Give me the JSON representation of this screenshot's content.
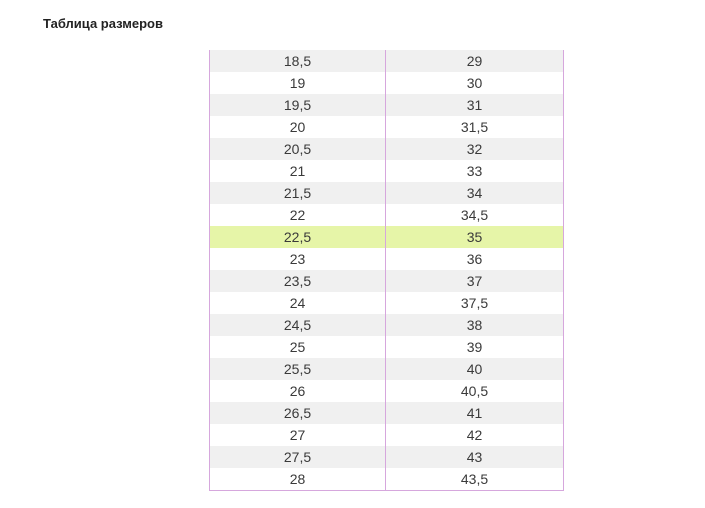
{
  "page": {
    "title": "Таблица размеров"
  },
  "colors": {
    "row_shade": "#f0f0f0",
    "row_highlight": "#e6f5a8",
    "border": "#d6a7dd"
  },
  "size_table": {
    "highlighted_row_index": 8,
    "rows": [
      {
        "a": "18,5",
        "b": "29"
      },
      {
        "a": "19",
        "b": "30"
      },
      {
        "a": "19,5",
        "b": "31"
      },
      {
        "a": "20",
        "b": "31,5"
      },
      {
        "a": "20,5",
        "b": "32"
      },
      {
        "a": "21",
        "b": "33"
      },
      {
        "a": "21,5",
        "b": "34"
      },
      {
        "a": "22",
        "b": "34,5"
      },
      {
        "a": "22,5",
        "b": "35"
      },
      {
        "a": "23",
        "b": "36"
      },
      {
        "a": "23,5",
        "b": "37"
      },
      {
        "a": "24",
        "b": "37,5"
      },
      {
        "a": "24,5",
        "b": "38"
      },
      {
        "a": "25",
        "b": "39"
      },
      {
        "a": "25,5",
        "b": "40"
      },
      {
        "a": "26",
        "b": "40,5"
      },
      {
        "a": "26,5",
        "b": "41"
      },
      {
        "a": "27",
        "b": "42"
      },
      {
        "a": "27,5",
        "b": "43"
      },
      {
        "a": "28",
        "b": "43,5"
      }
    ]
  }
}
